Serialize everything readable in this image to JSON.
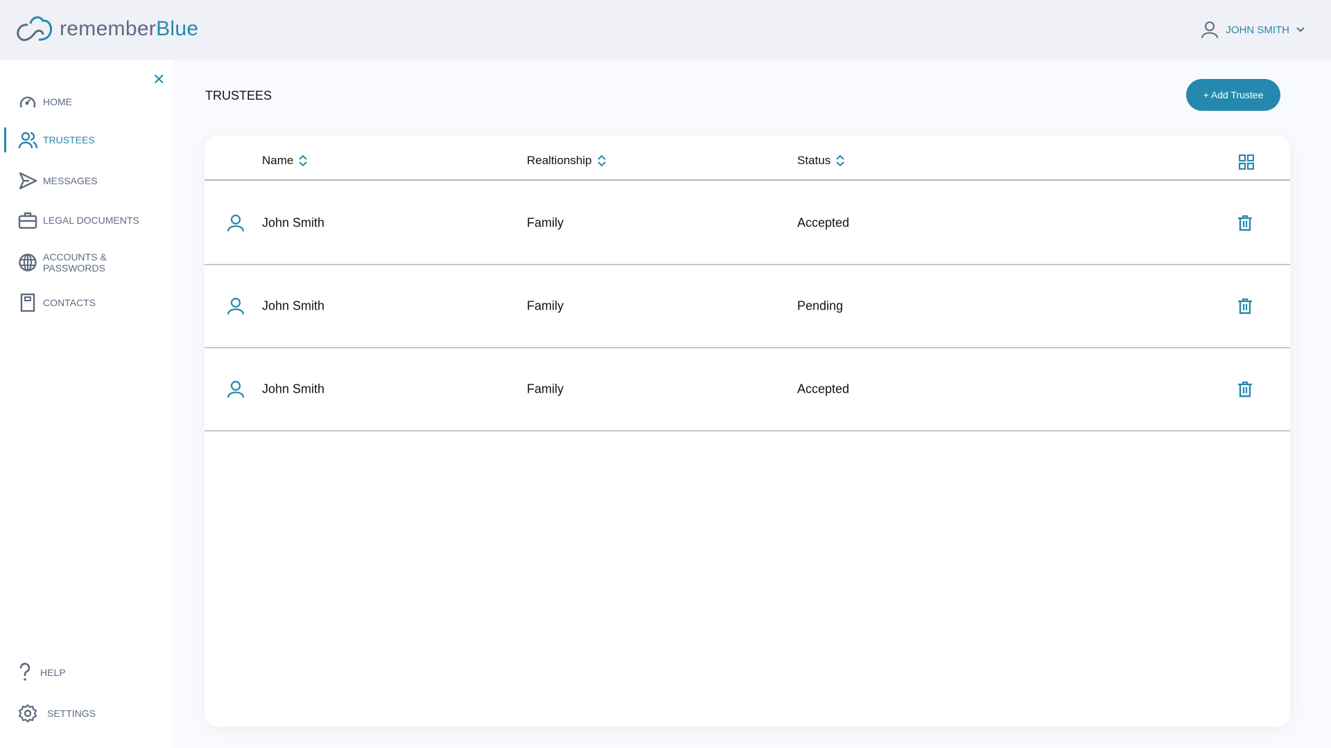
{
  "app": {
    "logo_part1": "remember",
    "logo_part2": "Blue",
    "user_name": "JOHN SMITH"
  },
  "sidebar": {
    "items": [
      {
        "label": "HOME",
        "icon": "gauge-icon",
        "active": false
      },
      {
        "label": "TRUSTEES",
        "icon": "users-icon",
        "active": true
      },
      {
        "label": "MESSAGES",
        "icon": "send-icon",
        "active": false
      },
      {
        "label": "LEGAL DOCUMENTS",
        "icon": "briefcase-icon",
        "active": false
      },
      {
        "label": "ACCOUNTS & PASSWORDS",
        "icon": "globe-icon",
        "active": false
      },
      {
        "label": "CONTACTS",
        "icon": "contact-book-icon",
        "active": false
      }
    ],
    "bottom": [
      {
        "label": "HELP",
        "icon": "question-icon"
      },
      {
        "label": "SETTINGS",
        "icon": "gear-icon"
      }
    ]
  },
  "main": {
    "title": "TRUSTEES",
    "add_button": "+ Add Trustee",
    "columns": [
      "Name",
      "Realtionship",
      "Status"
    ],
    "rows": [
      {
        "name": "John Smith",
        "relationship": "Family",
        "status": "Accepted"
      },
      {
        "name": "John Smith",
        "relationship": "Family",
        "status": "Pending"
      },
      {
        "name": "John Smith",
        "relationship": "Family",
        "status": "Accepted"
      }
    ]
  },
  "colors": {
    "accent": "#2589ad",
    "muted": "#5d6b80"
  }
}
